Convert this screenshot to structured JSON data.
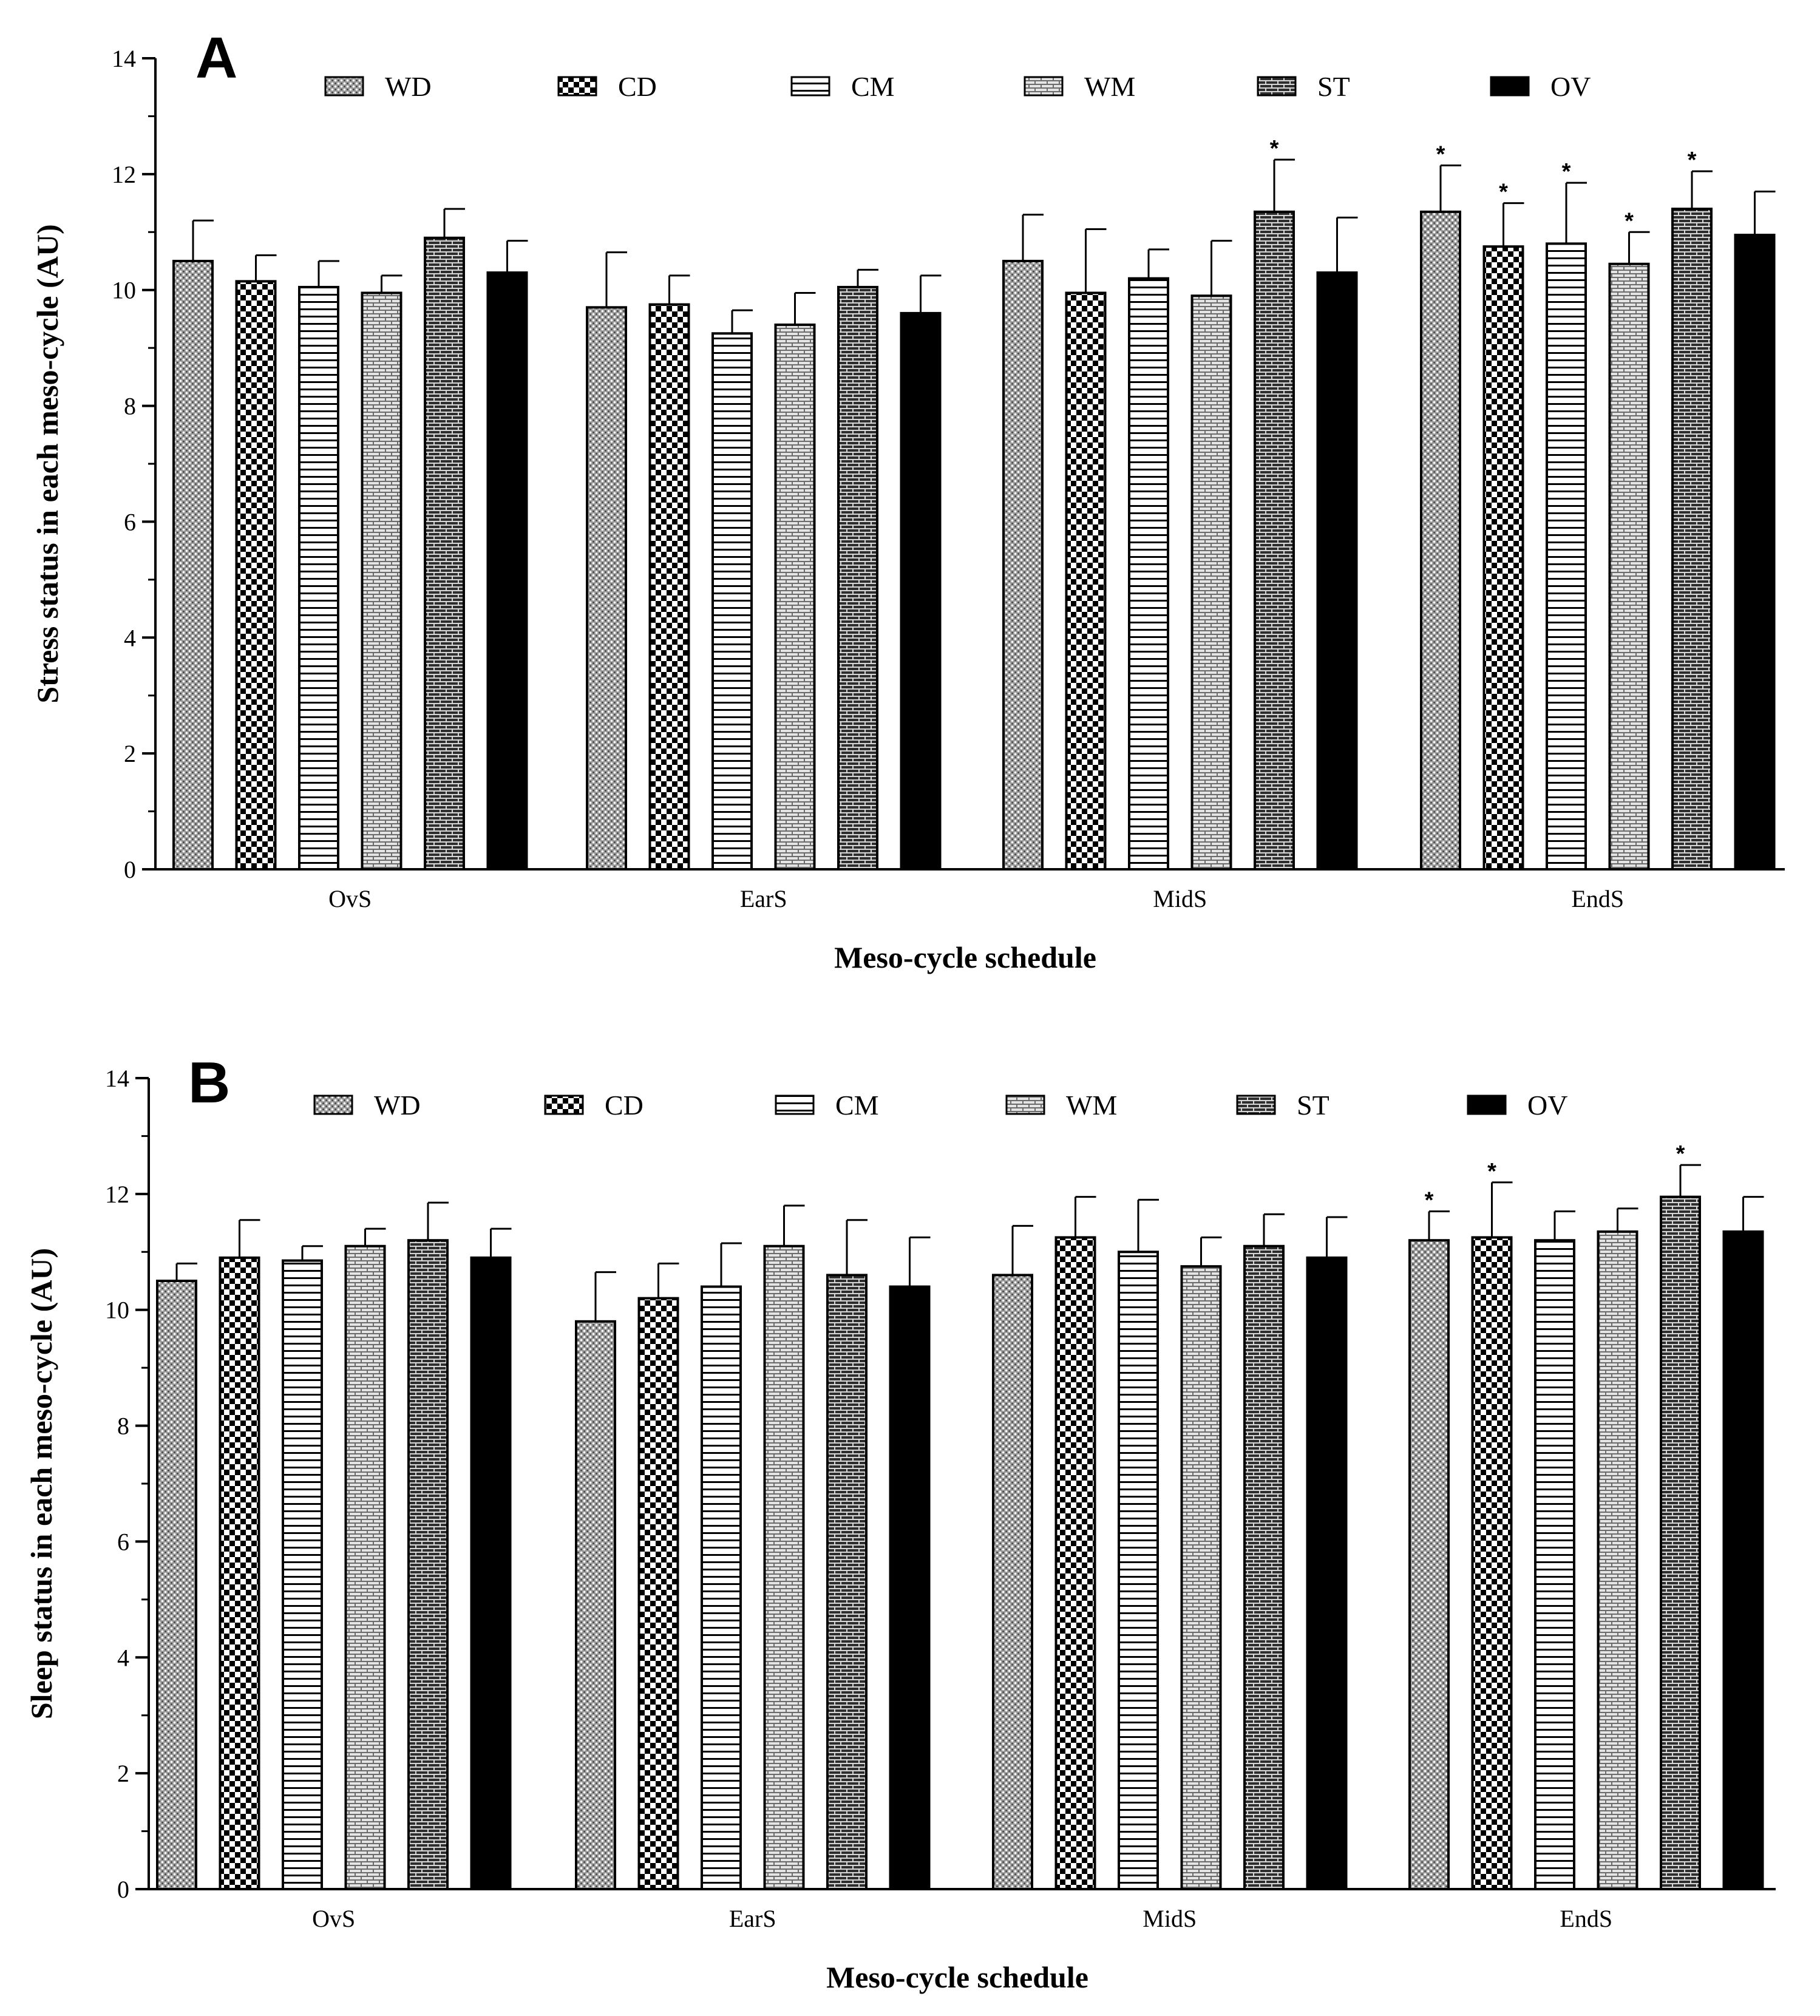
{
  "chart_data": [
    {
      "type": "bar",
      "panel": "A",
      "title": "",
      "xlabel": "Meso-cycle schedule",
      "ylabel": "Stress status in each meso-cycle (AU)",
      "ylim": [
        0,
        14
      ],
      "yticks": [
        "0",
        "2",
        "4",
        "6",
        "8",
        "10",
        "12",
        "14"
      ],
      "categories": [
        "OvS",
        "EarS",
        "MidS",
        "EndS"
      ],
      "series": [
        {
          "name": "WD",
          "pattern": "dots",
          "values": [
            10.5,
            9.7,
            10.5,
            11.35
          ],
          "errors": [
            0.7,
            0.95,
            0.8,
            0.8
          ],
          "significant": [
            false,
            false,
            false,
            true
          ]
        },
        {
          "name": "CD",
          "pattern": "checker",
          "values": [
            10.15,
            9.75,
            9.95,
            10.75
          ],
          "errors": [
            0.45,
            0.5,
            1.1,
            0.75
          ],
          "significant": [
            false,
            false,
            false,
            true
          ]
        },
        {
          "name": "CM",
          "pattern": "hlines",
          "values": [
            10.05,
            9.25,
            10.2,
            10.8
          ],
          "errors": [
            0.45,
            0.4,
            0.5,
            1.05
          ],
          "significant": [
            false,
            false,
            false,
            true
          ]
        },
        {
          "name": "WM",
          "pattern": "brick-light",
          "values": [
            9.95,
            9.4,
            9.9,
            10.45
          ],
          "errors": [
            0.3,
            0.55,
            0.95,
            0.55
          ],
          "significant": [
            false,
            false,
            false,
            true
          ]
        },
        {
          "name": "ST",
          "pattern": "brick-dark",
          "values": [
            10.9,
            10.05,
            11.35,
            11.4
          ],
          "errors": [
            0.5,
            0.3,
            0.9,
            0.65
          ],
          "significant": [
            false,
            false,
            true,
            true
          ]
        },
        {
          "name": "OV",
          "pattern": "solid",
          "values": [
            10.3,
            9.6,
            10.3,
            10.95
          ],
          "errors": [
            0.55,
            0.65,
            0.95,
            0.75
          ],
          "significant": [
            false,
            false,
            false,
            false
          ]
        }
      ],
      "significance_marker": "*",
      "legend_position": "top"
    },
    {
      "type": "bar",
      "panel": "B",
      "title": "",
      "xlabel": "Meso-cycle schedule",
      "ylabel": "Sleep status in each meso-cycle (AU)",
      "ylim": [
        0,
        14
      ],
      "yticks": [
        "0",
        "2",
        "4",
        "6",
        "8",
        "10",
        "12",
        "14"
      ],
      "categories": [
        "OvS",
        "EarS",
        "MidS",
        "EndS"
      ],
      "series": [
        {
          "name": "WD",
          "pattern": "dots",
          "values": [
            10.5,
            9.8,
            10.6,
            11.2
          ],
          "errors": [
            0.3,
            0.85,
            0.85,
            0.5
          ],
          "significant": [
            false,
            false,
            false,
            true
          ]
        },
        {
          "name": "CD",
          "pattern": "checker",
          "values": [
            10.9,
            10.2,
            11.25,
            11.25
          ],
          "errors": [
            0.65,
            0.6,
            0.7,
            0.95
          ],
          "significant": [
            false,
            false,
            false,
            true
          ]
        },
        {
          "name": "CM",
          "pattern": "hlines",
          "values": [
            10.85,
            10.4,
            11.0,
            11.2
          ],
          "errors": [
            0.25,
            0.75,
            0.9,
            0.5
          ],
          "significant": [
            false,
            false,
            false,
            false
          ]
        },
        {
          "name": "WM",
          "pattern": "brick-light",
          "values": [
            11.1,
            11.1,
            10.75,
            11.35
          ],
          "errors": [
            0.3,
            0.7,
            0.5,
            0.4
          ],
          "significant": [
            false,
            false,
            false,
            false
          ]
        },
        {
          "name": "ST",
          "pattern": "brick-dark",
          "values": [
            11.2,
            10.6,
            11.1,
            11.95
          ],
          "errors": [
            0.65,
            0.95,
            0.55,
            0.55
          ],
          "significant": [
            false,
            false,
            false,
            true
          ]
        },
        {
          "name": "OV",
          "pattern": "solid",
          "values": [
            10.9,
            10.4,
            10.9,
            11.35
          ],
          "errors": [
            0.5,
            0.85,
            0.7,
            0.6
          ],
          "significant": [
            false,
            false,
            false,
            false
          ]
        }
      ],
      "significance_marker": "*",
      "legend_position": "top"
    }
  ]
}
